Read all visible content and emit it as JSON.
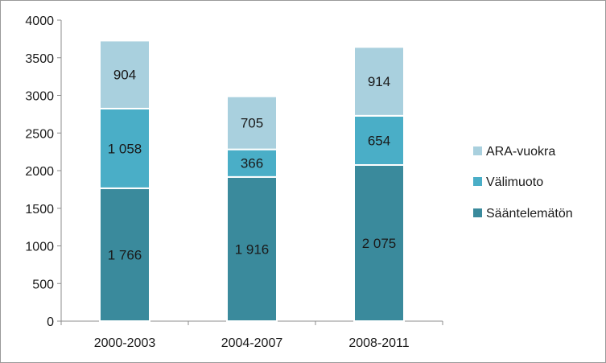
{
  "chart_data": {
    "type": "bar",
    "stacked": true,
    "categories": [
      "2000-2003",
      "2004-2007",
      "2008-2011"
    ],
    "series": [
      {
        "name": "Sääntelemätön",
        "values": [
          1766,
          1916,
          2075
        ],
        "labels": [
          "1 766",
          "1 916",
          "2 075"
        ],
        "color": "#3a8a9c"
      },
      {
        "name": "Välimuoto",
        "values": [
          1058,
          366,
          654
        ],
        "labels": [
          "1 058",
          "366",
          "654"
        ],
        "color": "#4aaec7"
      },
      {
        "name": "ARA-vuokra",
        "values": [
          904,
          705,
          914
        ],
        "labels": [
          "904",
          "705",
          "914"
        ],
        "color": "#a9d0de"
      }
    ],
    "legend_order": [
      "ARA-vuokra",
      "Välimuoto",
      "Sääntelemätön"
    ],
    "yticks": [
      "0",
      "500",
      "1000",
      "1500",
      "2000",
      "2500",
      "3000",
      "3500",
      "4000"
    ],
    "ylim": [
      0,
      4000
    ],
    "grid": false,
    "legend_position": "right",
    "title": "",
    "xlabel": "",
    "ylabel": ""
  }
}
